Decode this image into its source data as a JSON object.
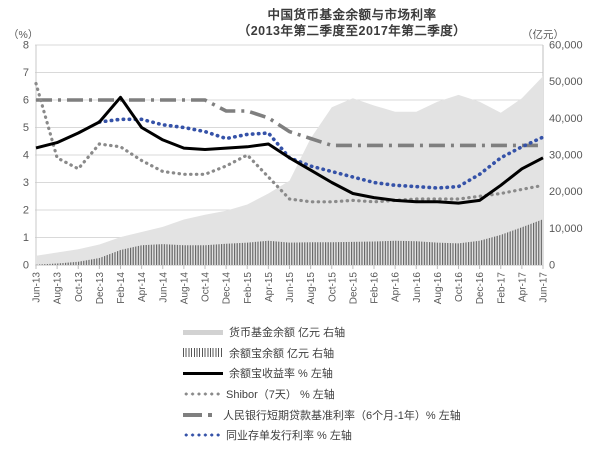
{
  "title": {
    "line1": "中国货币基金余额与市场利率",
    "line2": "（2013年第二季度至2017年第二季度）"
  },
  "axes": {
    "left_unit": "（%）",
    "right_unit": "（亿元）"
  },
  "chart_data": {
    "type": "combo",
    "title": "中国货币基金余额与市场利率（2013年第二季度至2017年第二季度）",
    "grid": "horizontal",
    "legend_position": "bottom-left",
    "categories": [
      "Jun-13",
      "Aug-13",
      "Oct-13",
      "Dec-13",
      "Feb-14",
      "Apr-14",
      "Jun-14",
      "Aug-14",
      "Oct-14",
      "Dec-14",
      "Feb-15",
      "Apr-15",
      "Jun-15",
      "Aug-15",
      "Oct-15",
      "Dec-15",
      "Feb-16",
      "Apr-16",
      "Jun-16",
      "Aug-16",
      "Oct-16",
      "Dec-16",
      "Feb-17",
      "Apr-17",
      "Jun-17"
    ],
    "left_axis": {
      "unit": "（%）",
      "min": 0,
      "max": 8,
      "ticks": [
        0,
        1,
        2,
        3,
        4,
        5,
        6,
        7,
        8
      ]
    },
    "right_axis": {
      "unit": "（亿元）",
      "min": 0,
      "max": 60000,
      "ticks": [
        "0",
        "10,000",
        "20,000",
        "30,000",
        "40,000",
        "50,000",
        "60,000"
      ]
    },
    "series": [
      {
        "name": "货币基金余额 亿元 右轴",
        "style": "area",
        "axis": "right",
        "color": "#e3e3e3",
        "values": [
          2500,
          3400,
          4300,
          5600,
          7600,
          9000,
          10400,
          12400,
          13700,
          14800,
          16500,
          19500,
          23000,
          34500,
          43000,
          45500,
          43500,
          41800,
          41800,
          44500,
          46400,
          44500,
          41500,
          45500,
          51500
        ]
      },
      {
        "name": "余额宝余额 亿元 右轴",
        "style": "hatch-bars",
        "axis": "right",
        "color": "#555555",
        "values": [
          100,
          400,
          900,
          1900,
          4100,
          5400,
          5700,
          5400,
          5400,
          5800,
          6100,
          6600,
          6100,
          6200,
          6200,
          6300,
          6400,
          6600,
          6500,
          6100,
          5900,
          6600,
          8200,
          10300,
          12500
        ]
      },
      {
        "name": "余额宝收益率 % 左轴",
        "style": "solid",
        "axis": "left",
        "color": "#000000",
        "values": [
          4.26,
          4.45,
          4.8,
          5.2,
          6.1,
          5.0,
          4.55,
          4.25,
          4.2,
          4.25,
          4.3,
          4.4,
          3.9,
          3.45,
          3.0,
          2.6,
          2.45,
          2.35,
          2.3,
          2.3,
          2.25,
          2.35,
          2.9,
          3.5,
          3.9
        ]
      },
      {
        "name": "Shibor（7天） % 左轴",
        "style": "dotted",
        "axis": "left",
        "color": "#8a8a8a",
        "values": [
          6.6,
          3.9,
          3.5,
          4.4,
          4.3,
          3.8,
          3.4,
          3.3,
          3.3,
          3.6,
          4.0,
          3.2,
          2.4,
          2.3,
          2.3,
          2.35,
          2.3,
          2.35,
          2.4,
          2.4,
          2.4,
          2.5,
          2.6,
          2.75,
          2.9
        ]
      },
      {
        "name": "人民银行短期贷款基准利率（6个月-1年）% 左轴",
        "style": "dashdot",
        "axis": "left",
        "color": "#7f7f7f",
        "values": [
          6.0,
          6.0,
          6.0,
          6.0,
          6.0,
          6.0,
          6.0,
          6.0,
          6.0,
          5.6,
          5.6,
          5.35,
          4.85,
          4.6,
          4.35,
          4.35,
          4.35,
          4.35,
          4.35,
          4.35,
          4.35,
          4.35,
          4.35,
          4.35,
          4.35
        ]
      },
      {
        "name": "同业存单发行利率 % 左轴",
        "style": "dotted",
        "axis": "left",
        "color": "#3552a8",
        "values": [
          null,
          null,
          null,
          5.2,
          5.3,
          5.3,
          5.1,
          5.0,
          4.85,
          4.6,
          4.75,
          4.8,
          3.9,
          3.6,
          3.4,
          3.2,
          3.0,
          2.9,
          2.85,
          2.8,
          2.85,
          3.3,
          3.9,
          4.3,
          4.65
        ]
      }
    ]
  }
}
